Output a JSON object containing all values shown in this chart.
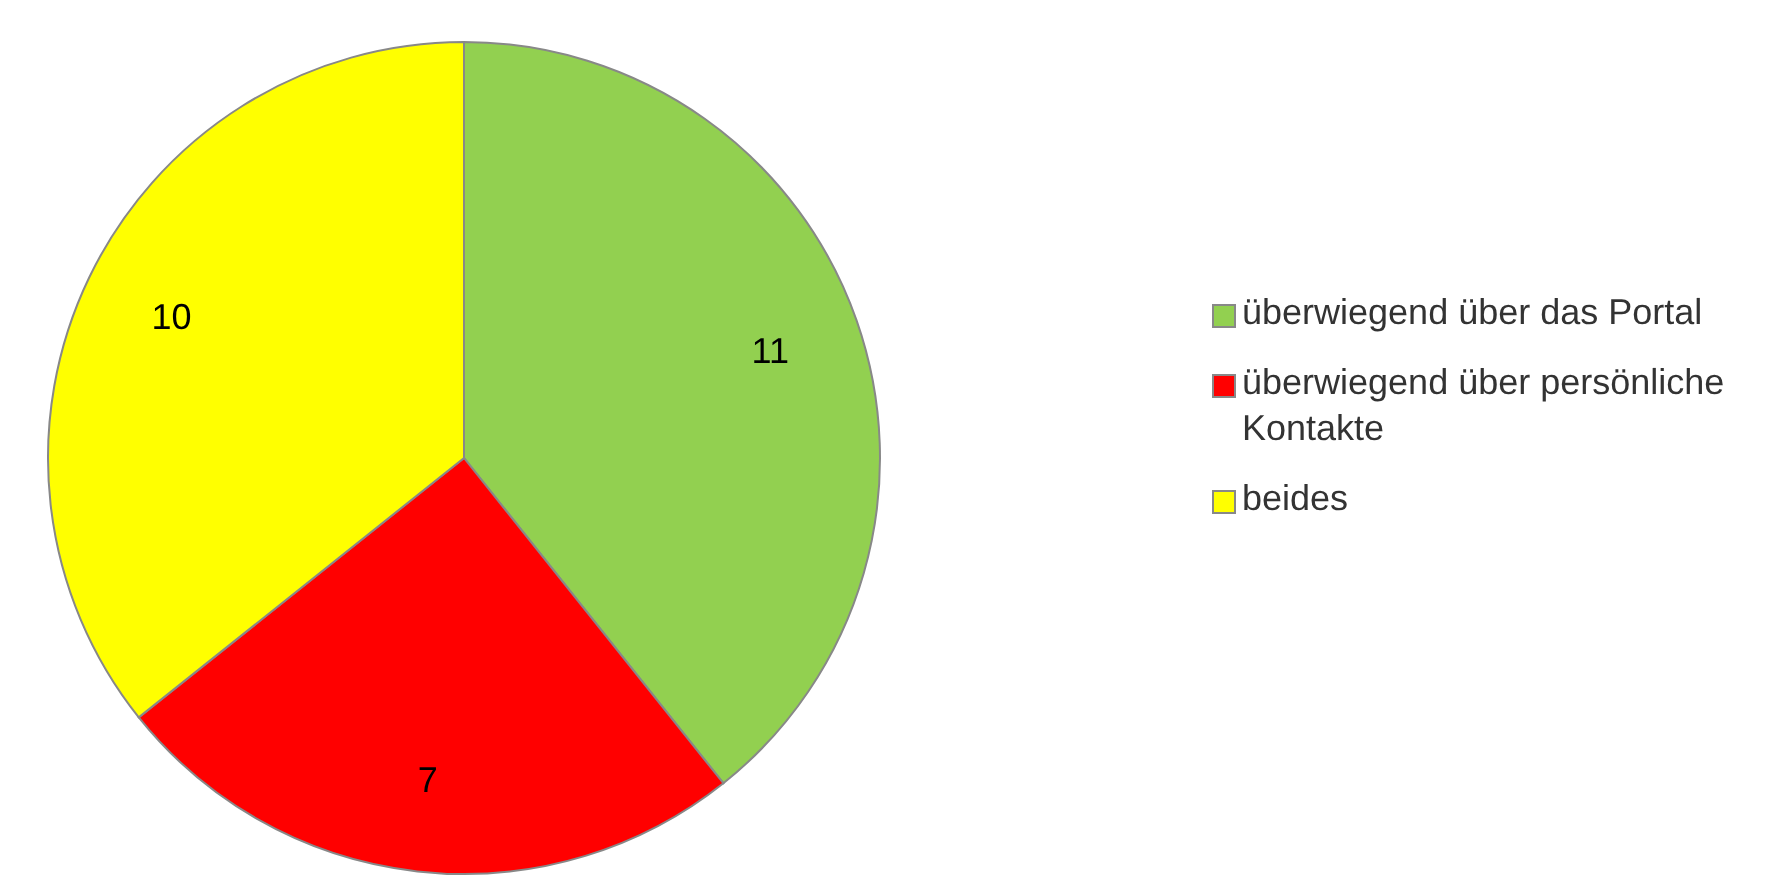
{
  "chart_data": {
    "type": "pie",
    "categories": [
      "überwiegend über das Portal",
      "überwiegend über persönliche Kontakte",
      "beides"
    ],
    "values": [
      11,
      7,
      10
    ],
    "colors": [
      "#92d050",
      "#ff0000",
      "#ffff00"
    ],
    "data_labels": true,
    "legend": "right"
  }
}
